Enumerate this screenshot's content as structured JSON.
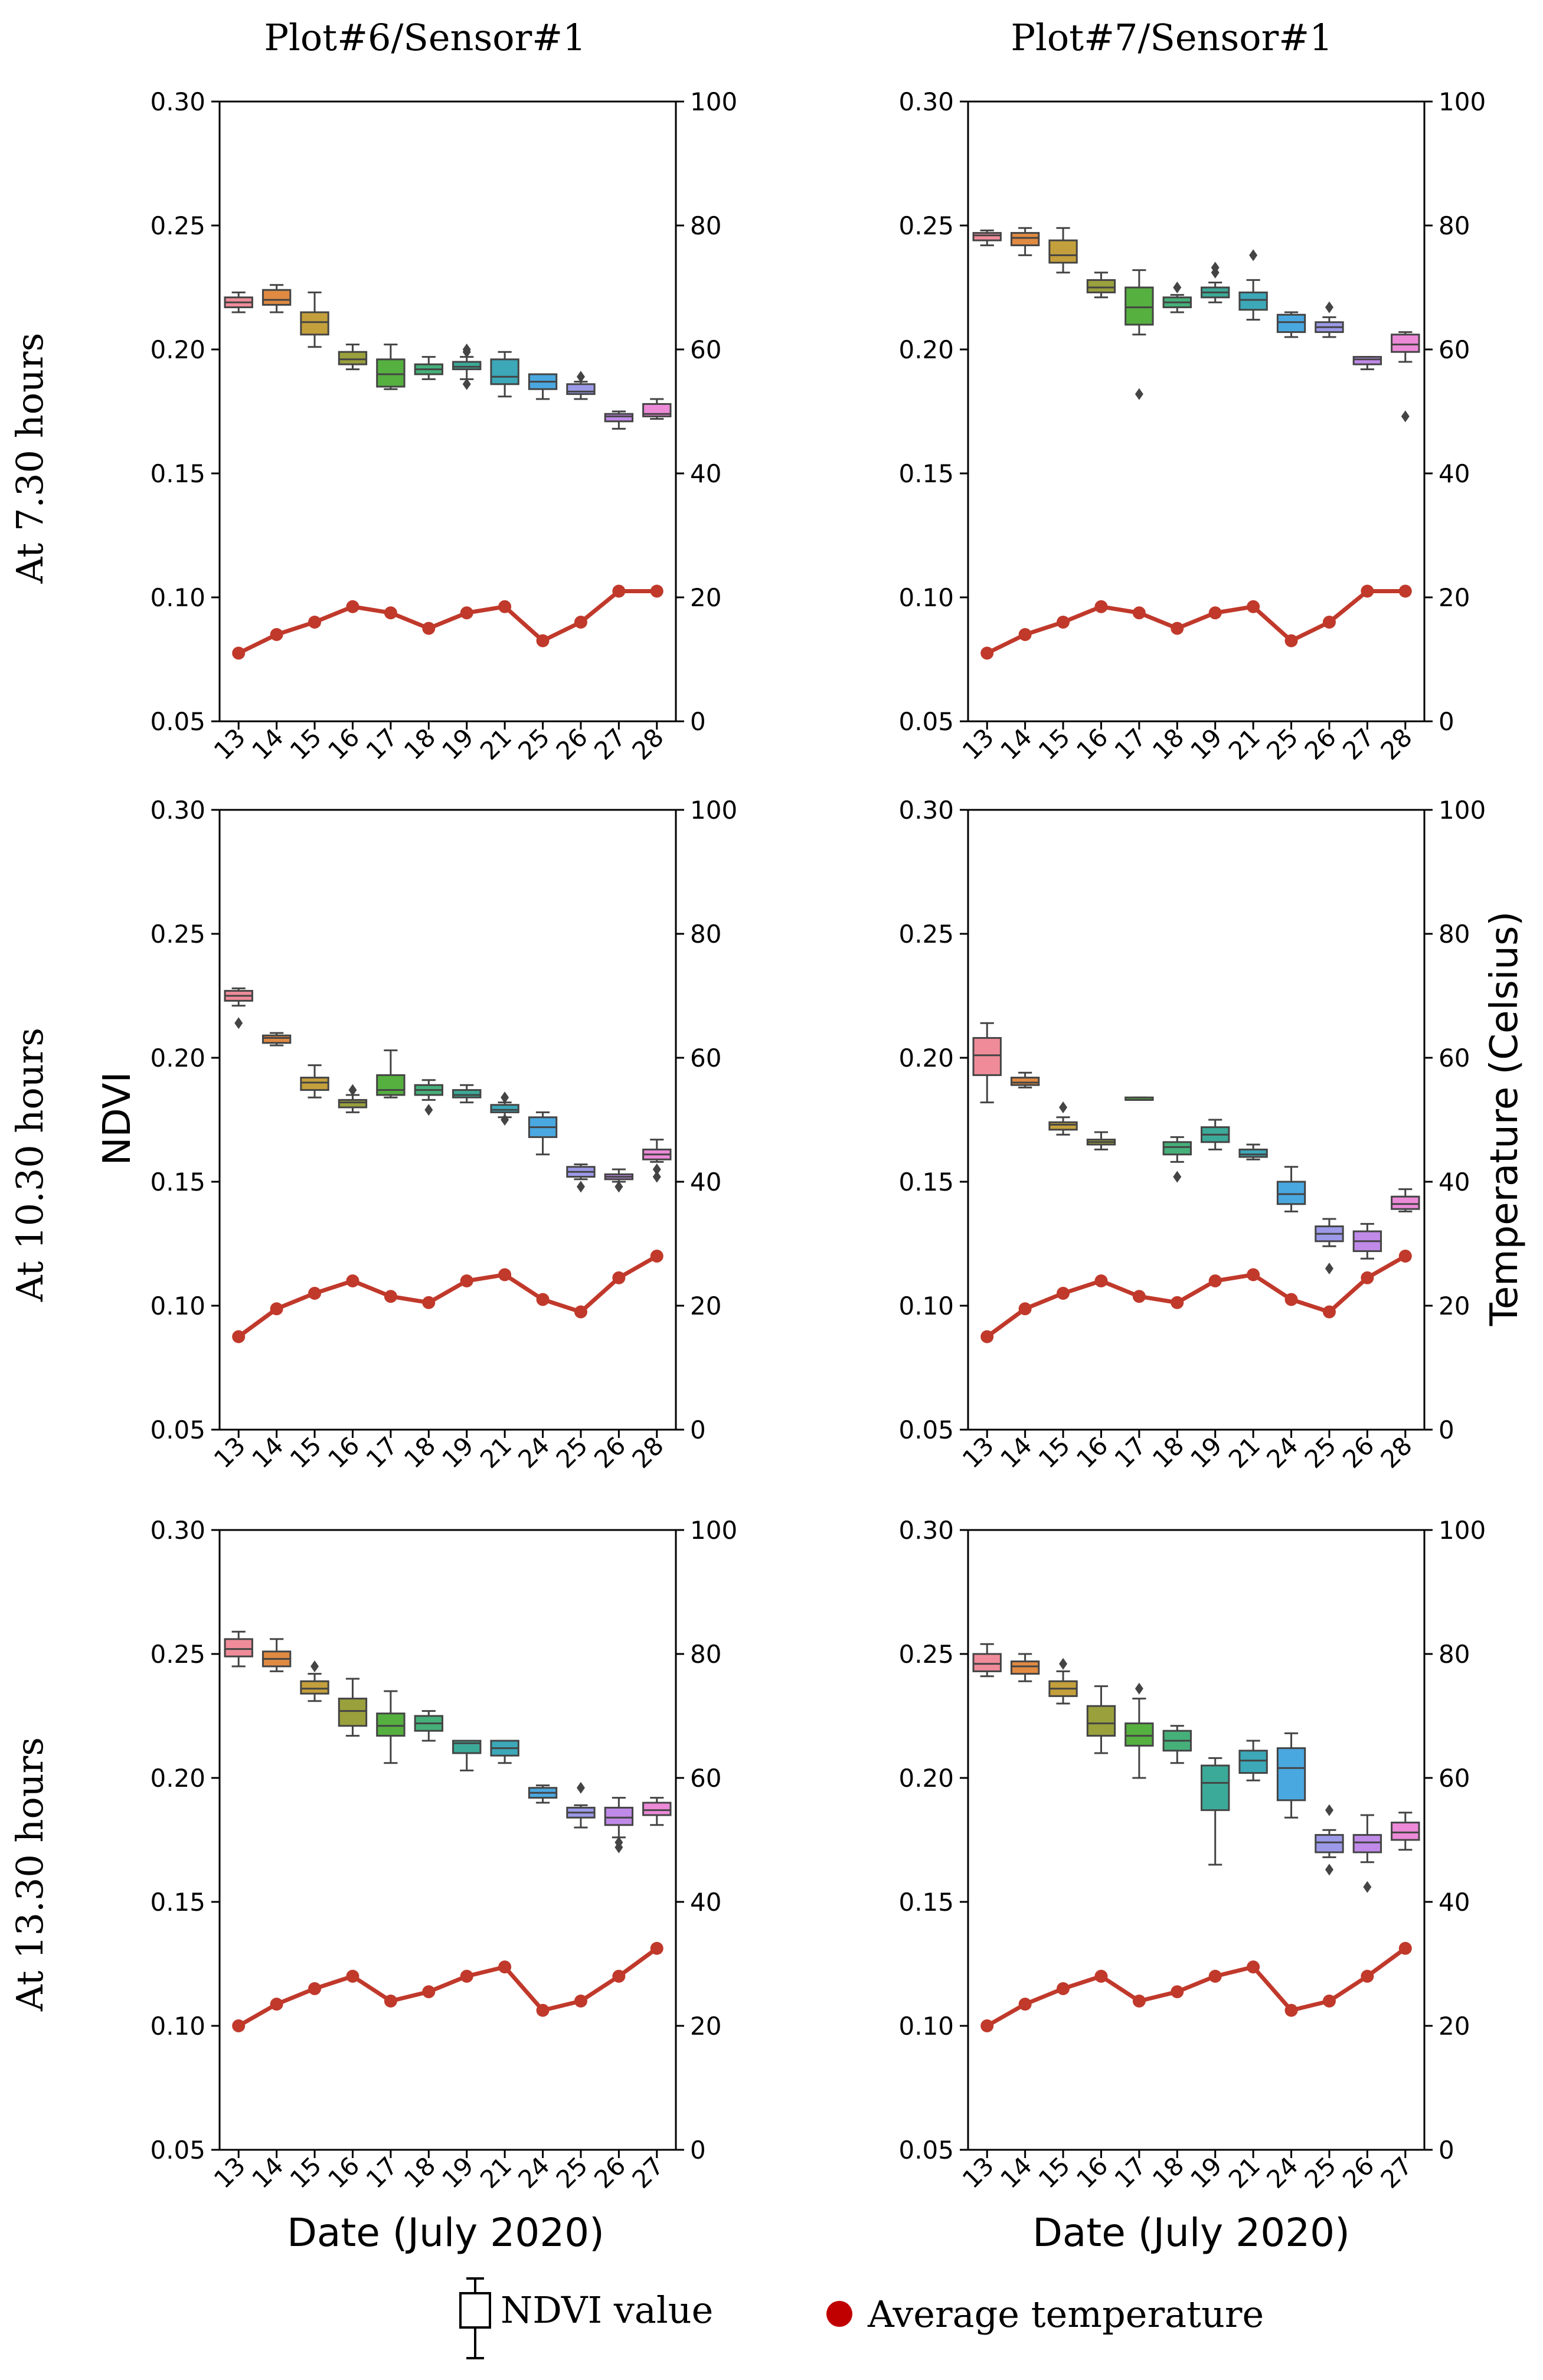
{
  "colors": {
    "temperature_line": "#c0392b",
    "box_palette": [
      "#f08c9a",
      "#e08a42",
      "#c4a03c",
      "#9aa03c",
      "#56b040",
      "#46b07a",
      "#3caa98",
      "#3ca8b8",
      "#4aa8e0",
      "#9c9ae8",
      "#c08ae8",
      "#ec8ad8"
    ],
    "whisker": "#444444",
    "axis": "#000000"
  },
  "columns": [
    "Plot#6/Sensor#1",
    "Plot#7/Sensor#1"
  ],
  "rows": [
    "At 7.30 hours",
    "At 10.30 hours",
    "At 13.30 hours"
  ],
  "ylabel_left": "NDVI",
  "ylabel_right": "Temperature (Celsius)",
  "xlabel": "Date (July 2020)",
  "legend": {
    "box": "NDVI value",
    "dot": "Average temperature"
  },
  "chart_data": [
    {
      "type": "box+line",
      "title": "Plot#6/Sensor#1",
      "row": "At 7.30 hours",
      "ylim_left": [
        0.05,
        0.3
      ],
      "ylim_right": [
        0,
        100
      ],
      "yticks_left": [
        "0.05",
        "0.10",
        "0.15",
        "0.20",
        "0.25",
        "0.30"
      ],
      "yticks_right": [
        "0",
        "20",
        "40",
        "60",
        "80",
        "100"
      ],
      "categories": [
        "13",
        "14",
        "15",
        "16",
        "17",
        "18",
        "19",
        "21",
        "25",
        "26",
        "27",
        "28"
      ],
      "ndvi_boxes": [
        {
          "min": 0.215,
          "q1": 0.217,
          "med": 0.219,
          "q3": 0.221,
          "max": 0.223,
          "out": []
        },
        {
          "min": 0.215,
          "q1": 0.218,
          "med": 0.22,
          "q3": 0.224,
          "max": 0.226,
          "out": []
        },
        {
          "min": 0.201,
          "q1": 0.206,
          "med": 0.211,
          "q3": 0.215,
          "max": 0.223,
          "out": []
        },
        {
          "min": 0.192,
          "q1": 0.194,
          "med": 0.196,
          "q3": 0.199,
          "max": 0.202,
          "out": []
        },
        {
          "min": 0.184,
          "q1": 0.185,
          "med": 0.19,
          "q3": 0.196,
          "max": 0.202,
          "out": []
        },
        {
          "min": 0.188,
          "q1": 0.19,
          "med": 0.192,
          "q3": 0.194,
          "max": 0.197,
          "out": []
        },
        {
          "min": 0.188,
          "q1": 0.192,
          "med": 0.193,
          "q3": 0.195,
          "max": 0.197,
          "out": [
            0.186,
            0.199,
            0.2
          ]
        },
        {
          "min": 0.181,
          "q1": 0.186,
          "med": 0.189,
          "q3": 0.196,
          "max": 0.199,
          "out": []
        },
        {
          "min": 0.18,
          "q1": 0.184,
          "med": 0.187,
          "q3": 0.19,
          "max": 0.19,
          "out": []
        },
        {
          "min": 0.18,
          "q1": 0.182,
          "med": 0.183,
          "q3": 0.186,
          "max": 0.187,
          "out": [
            0.189
          ]
        },
        {
          "min": 0.168,
          "q1": 0.171,
          "med": 0.173,
          "q3": 0.174,
          "max": 0.175,
          "out": []
        },
        {
          "min": 0.172,
          "q1": 0.173,
          "med": 0.174,
          "q3": 0.178,
          "max": 0.18,
          "out": []
        }
      ],
      "temperature": [
        11,
        14,
        16,
        18.5,
        17.5,
        15,
        17.5,
        18.5,
        13,
        16,
        21,
        21
      ]
    },
    {
      "type": "box+line",
      "title": "Plot#7/Sensor#1",
      "row": "At 7.30 hours",
      "ylim_left": [
        0.05,
        0.3
      ],
      "ylim_right": [
        0,
        100
      ],
      "yticks_left": [
        "0.05",
        "0.10",
        "0.15",
        "0.20",
        "0.25",
        "0.30"
      ],
      "yticks_right": [
        "0",
        "20",
        "40",
        "60",
        "80",
        "100"
      ],
      "categories": [
        "13",
        "14",
        "15",
        "16",
        "17",
        "18",
        "19",
        "21",
        "25",
        "26",
        "27",
        "28"
      ],
      "ndvi_boxes": [
        {
          "min": 0.242,
          "q1": 0.244,
          "med": 0.246,
          "q3": 0.247,
          "max": 0.248,
          "out": []
        },
        {
          "min": 0.238,
          "q1": 0.242,
          "med": 0.245,
          "q3": 0.247,
          "max": 0.249,
          "out": []
        },
        {
          "min": 0.231,
          "q1": 0.235,
          "med": 0.238,
          "q3": 0.244,
          "max": 0.249,
          "out": []
        },
        {
          "min": 0.221,
          "q1": 0.223,
          "med": 0.225,
          "q3": 0.228,
          "max": 0.231,
          "out": []
        },
        {
          "min": 0.206,
          "q1": 0.21,
          "med": 0.217,
          "q3": 0.225,
          "max": 0.232,
          "out": [
            0.182
          ]
        },
        {
          "min": 0.215,
          "q1": 0.217,
          "med": 0.219,
          "q3": 0.221,
          "max": 0.222,
          "out": [
            0.225
          ]
        },
        {
          "min": 0.219,
          "q1": 0.221,
          "med": 0.223,
          "q3": 0.225,
          "max": 0.227,
          "out": [
            0.231,
            0.233
          ]
        },
        {
          "min": 0.212,
          "q1": 0.216,
          "med": 0.22,
          "q3": 0.223,
          "max": 0.228,
          "out": [
            0.238
          ]
        },
        {
          "min": 0.205,
          "q1": 0.207,
          "med": 0.211,
          "q3": 0.214,
          "max": 0.215,
          "out": []
        },
        {
          "min": 0.205,
          "q1": 0.207,
          "med": 0.209,
          "q3": 0.211,
          "max": 0.213,
          "out": [
            0.217
          ]
        },
        {
          "min": 0.192,
          "q1": 0.194,
          "med": 0.196,
          "q3": 0.197,
          "max": 0.197,
          "out": []
        },
        {
          "min": 0.195,
          "q1": 0.199,
          "med": 0.202,
          "q3": 0.206,
          "max": 0.207,
          "out": [
            0.173
          ]
        }
      ],
      "temperature": [
        11,
        14,
        16,
        18.5,
        17.5,
        15,
        17.5,
        18.5,
        13,
        16,
        21,
        21
      ]
    },
    {
      "type": "box+line",
      "title": "Plot#6/Sensor#1",
      "row": "At 10.30 hours",
      "ylim_left": [
        0.05,
        0.3
      ],
      "ylim_right": [
        0,
        100
      ],
      "yticks_left": [
        "0.05",
        "0.10",
        "0.15",
        "0.20",
        "0.25",
        "0.30"
      ],
      "yticks_right": [
        "0",
        "20",
        "40",
        "60",
        "80",
        "100"
      ],
      "categories": [
        "13",
        "14",
        "15",
        "16",
        "17",
        "18",
        "19",
        "21",
        "24",
        "25",
        "26",
        "28"
      ],
      "ndvi_boxes": [
        {
          "min": 0.221,
          "q1": 0.223,
          "med": 0.225,
          "q3": 0.227,
          "max": 0.228,
          "out": [
            0.214
          ]
        },
        {
          "min": 0.205,
          "q1": 0.206,
          "med": 0.208,
          "q3": 0.209,
          "max": 0.21,
          "out": []
        },
        {
          "min": 0.184,
          "q1": 0.187,
          "med": 0.19,
          "q3": 0.192,
          "max": 0.197,
          "out": []
        },
        {
          "min": 0.178,
          "q1": 0.18,
          "med": 0.182,
          "q3": 0.183,
          "max": 0.185,
          "out": [
            0.187
          ]
        },
        {
          "min": 0.184,
          "q1": 0.185,
          "med": 0.187,
          "q3": 0.193,
          "max": 0.203,
          "out": []
        },
        {
          "min": 0.183,
          "q1": 0.185,
          "med": 0.187,
          "q3": 0.189,
          "max": 0.191,
          "out": [
            0.179
          ]
        },
        {
          "min": 0.182,
          "q1": 0.184,
          "med": 0.185,
          "q3": 0.187,
          "max": 0.189,
          "out": []
        },
        {
          "min": 0.176,
          "q1": 0.178,
          "med": 0.179,
          "q3": 0.181,
          "max": 0.182,
          "out": [
            0.175,
            0.184
          ]
        },
        {
          "min": 0.161,
          "q1": 0.168,
          "med": 0.172,
          "q3": 0.176,
          "max": 0.178,
          "out": []
        },
        {
          "min": 0.151,
          "q1": 0.152,
          "med": 0.154,
          "q3": 0.156,
          "max": 0.157,
          "out": [
            0.148
          ]
        },
        {
          "min": 0.15,
          "q1": 0.151,
          "med": 0.152,
          "q3": 0.153,
          "max": 0.155,
          "out": [
            0.148
          ]
        },
        {
          "min": 0.158,
          "q1": 0.159,
          "med": 0.161,
          "q3": 0.163,
          "max": 0.167,
          "out": [
            0.152,
            0.155
          ]
        }
      ],
      "temperature": [
        15,
        19.5,
        22,
        24,
        21.5,
        20.5,
        24,
        25,
        21,
        19,
        24.5,
        28
      ]
    },
    {
      "type": "box+line",
      "title": "Plot#7/Sensor#1",
      "row": "At 10.30 hours",
      "ylim_left": [
        0.05,
        0.3
      ],
      "ylim_right": [
        0,
        100
      ],
      "yticks_left": [
        "0.05",
        "0.10",
        "0.15",
        "0.20",
        "0.25",
        "0.30"
      ],
      "yticks_right": [
        "0",
        "20",
        "40",
        "60",
        "80",
        "100"
      ],
      "categories": [
        "13",
        "14",
        "15",
        "16",
        "17",
        "18",
        "19",
        "21",
        "24",
        "25",
        "26",
        "28"
      ],
      "ndvi_boxes": [
        {
          "min": 0.182,
          "q1": 0.193,
          "med": 0.201,
          "q3": 0.208,
          "max": 0.214,
          "out": []
        },
        {
          "min": 0.188,
          "q1": 0.189,
          "med": 0.19,
          "q3": 0.192,
          "max": 0.194,
          "out": []
        },
        {
          "min": 0.169,
          "q1": 0.171,
          "med": 0.173,
          "q3": 0.174,
          "max": 0.176,
          "out": [
            0.18
          ]
        },
        {
          "min": 0.163,
          "q1": 0.165,
          "med": 0.166,
          "q3": 0.167,
          "max": 0.17,
          "out": []
        },
        {
          "min": 0.183,
          "q1": 0.183,
          "med": 0.183,
          "q3": 0.184,
          "max": 0.184,
          "out": []
        },
        {
          "min": 0.158,
          "q1": 0.161,
          "med": 0.164,
          "q3": 0.166,
          "max": 0.168,
          "out": [
            0.152
          ]
        },
        {
          "min": 0.163,
          "q1": 0.166,
          "med": 0.169,
          "q3": 0.172,
          "max": 0.175,
          "out": []
        },
        {
          "min": 0.159,
          "q1": 0.16,
          "med": 0.161,
          "q3": 0.163,
          "max": 0.165,
          "out": []
        },
        {
          "min": 0.138,
          "q1": 0.141,
          "med": 0.145,
          "q3": 0.15,
          "max": 0.156,
          "out": []
        },
        {
          "min": 0.124,
          "q1": 0.126,
          "med": 0.129,
          "q3": 0.132,
          "max": 0.135,
          "out": [
            0.115
          ]
        },
        {
          "min": 0.119,
          "q1": 0.122,
          "med": 0.126,
          "q3": 0.13,
          "max": 0.133,
          "out": []
        },
        {
          "min": 0.138,
          "q1": 0.139,
          "med": 0.141,
          "q3": 0.144,
          "max": 0.147,
          "out": []
        }
      ],
      "temperature": [
        15,
        19.5,
        22,
        24,
        21.5,
        20.5,
        24,
        25,
        21,
        19,
        24.5,
        28
      ]
    },
    {
      "type": "box+line",
      "title": "Plot#6/Sensor#1",
      "row": "At 13.30 hours",
      "ylim_left": [
        0.05,
        0.3
      ],
      "ylim_right": [
        0,
        100
      ],
      "yticks_left": [
        "0.05",
        "0.10",
        "0.15",
        "0.20",
        "0.25",
        "0.30"
      ],
      "yticks_right": [
        "0",
        "20",
        "40",
        "60",
        "80",
        "100"
      ],
      "categories": [
        "13",
        "14",
        "15",
        "16",
        "17",
        "18",
        "19",
        "21",
        "24",
        "25",
        "26",
        "27"
      ],
      "ndvi_boxes": [
        {
          "min": 0.245,
          "q1": 0.249,
          "med": 0.252,
          "q3": 0.256,
          "max": 0.259,
          "out": []
        },
        {
          "min": 0.243,
          "q1": 0.245,
          "med": 0.248,
          "q3": 0.251,
          "max": 0.256,
          "out": []
        },
        {
          "min": 0.231,
          "q1": 0.234,
          "med": 0.236,
          "q3": 0.239,
          "max": 0.242,
          "out": [
            0.245
          ]
        },
        {
          "min": 0.217,
          "q1": 0.221,
          "med": 0.227,
          "q3": 0.232,
          "max": 0.24,
          "out": []
        },
        {
          "min": 0.206,
          "q1": 0.217,
          "med": 0.221,
          "q3": 0.226,
          "max": 0.235,
          "out": []
        },
        {
          "min": 0.215,
          "q1": 0.219,
          "med": 0.222,
          "q3": 0.225,
          "max": 0.227,
          "out": []
        },
        {
          "min": 0.203,
          "q1": 0.21,
          "med": 0.214,
          "q3": 0.215,
          "max": 0.215,
          "out": []
        },
        {
          "min": 0.206,
          "q1": 0.209,
          "med": 0.212,
          "q3": 0.215,
          "max": 0.215,
          "out": []
        },
        {
          "min": 0.19,
          "q1": 0.192,
          "med": 0.194,
          "q3": 0.196,
          "max": 0.197,
          "out": []
        },
        {
          "min": 0.18,
          "q1": 0.184,
          "med": 0.186,
          "q3": 0.188,
          "max": 0.189,
          "out": [
            0.196
          ]
        },
        {
          "min": 0.176,
          "q1": 0.181,
          "med": 0.184,
          "q3": 0.188,
          "max": 0.192,
          "out": [
            0.172,
            0.174
          ]
        },
        {
          "min": 0.181,
          "q1": 0.185,
          "med": 0.187,
          "q3": 0.19,
          "max": 0.192,
          "out": []
        }
      ],
      "temperature": [
        20,
        23.5,
        26,
        28,
        24,
        25.5,
        28,
        29.5,
        22.5,
        24,
        28,
        32.5
      ]
    },
    {
      "type": "box+line",
      "title": "Plot#7/Sensor#1",
      "row": "At 13.30 hours",
      "ylim_left": [
        0.05,
        0.3
      ],
      "ylim_right": [
        0,
        100
      ],
      "yticks_left": [
        "0.05",
        "0.10",
        "0.15",
        "0.20",
        "0.25",
        "0.30"
      ],
      "yticks_right": [
        "0",
        "20",
        "40",
        "60",
        "80",
        "100"
      ],
      "categories": [
        "13",
        "14",
        "15",
        "16",
        "17",
        "18",
        "19",
        "21",
        "24",
        "25",
        "26",
        "27"
      ],
      "ndvi_boxes": [
        {
          "min": 0.241,
          "q1": 0.243,
          "med": 0.246,
          "q3": 0.25,
          "max": 0.254,
          "out": []
        },
        {
          "min": 0.239,
          "q1": 0.242,
          "med": 0.245,
          "q3": 0.247,
          "max": 0.25,
          "out": []
        },
        {
          "min": 0.23,
          "q1": 0.233,
          "med": 0.236,
          "q3": 0.239,
          "max": 0.243,
          "out": [
            0.246
          ]
        },
        {
          "min": 0.21,
          "q1": 0.217,
          "med": 0.222,
          "q3": 0.229,
          "max": 0.237,
          "out": []
        },
        {
          "min": 0.2,
          "q1": 0.213,
          "med": 0.217,
          "q3": 0.222,
          "max": 0.232,
          "out": [
            0.236
          ]
        },
        {
          "min": 0.206,
          "q1": 0.211,
          "med": 0.215,
          "q3": 0.219,
          "max": 0.221,
          "out": []
        },
        {
          "min": 0.165,
          "q1": 0.187,
          "med": 0.198,
          "q3": 0.205,
          "max": 0.208,
          "out": []
        },
        {
          "min": 0.199,
          "q1": 0.202,
          "med": 0.207,
          "q3": 0.211,
          "max": 0.215,
          "out": []
        },
        {
          "min": 0.184,
          "q1": 0.191,
          "med": 0.204,
          "q3": 0.212,
          "max": 0.218,
          "out": []
        },
        {
          "min": 0.168,
          "q1": 0.17,
          "med": 0.174,
          "q3": 0.177,
          "max": 0.179,
          "out": [
            0.163,
            0.187
          ]
        },
        {
          "min": 0.166,
          "q1": 0.17,
          "med": 0.174,
          "q3": 0.177,
          "max": 0.185,
          "out": [
            0.156
          ]
        },
        {
          "min": 0.171,
          "q1": 0.175,
          "med": 0.178,
          "q3": 0.182,
          "max": 0.186,
          "out": []
        }
      ],
      "temperature": [
        20,
        23.5,
        26,
        28,
        24,
        25.5,
        28,
        29.5,
        22.5,
        24,
        28,
        32.5
      ]
    }
  ]
}
